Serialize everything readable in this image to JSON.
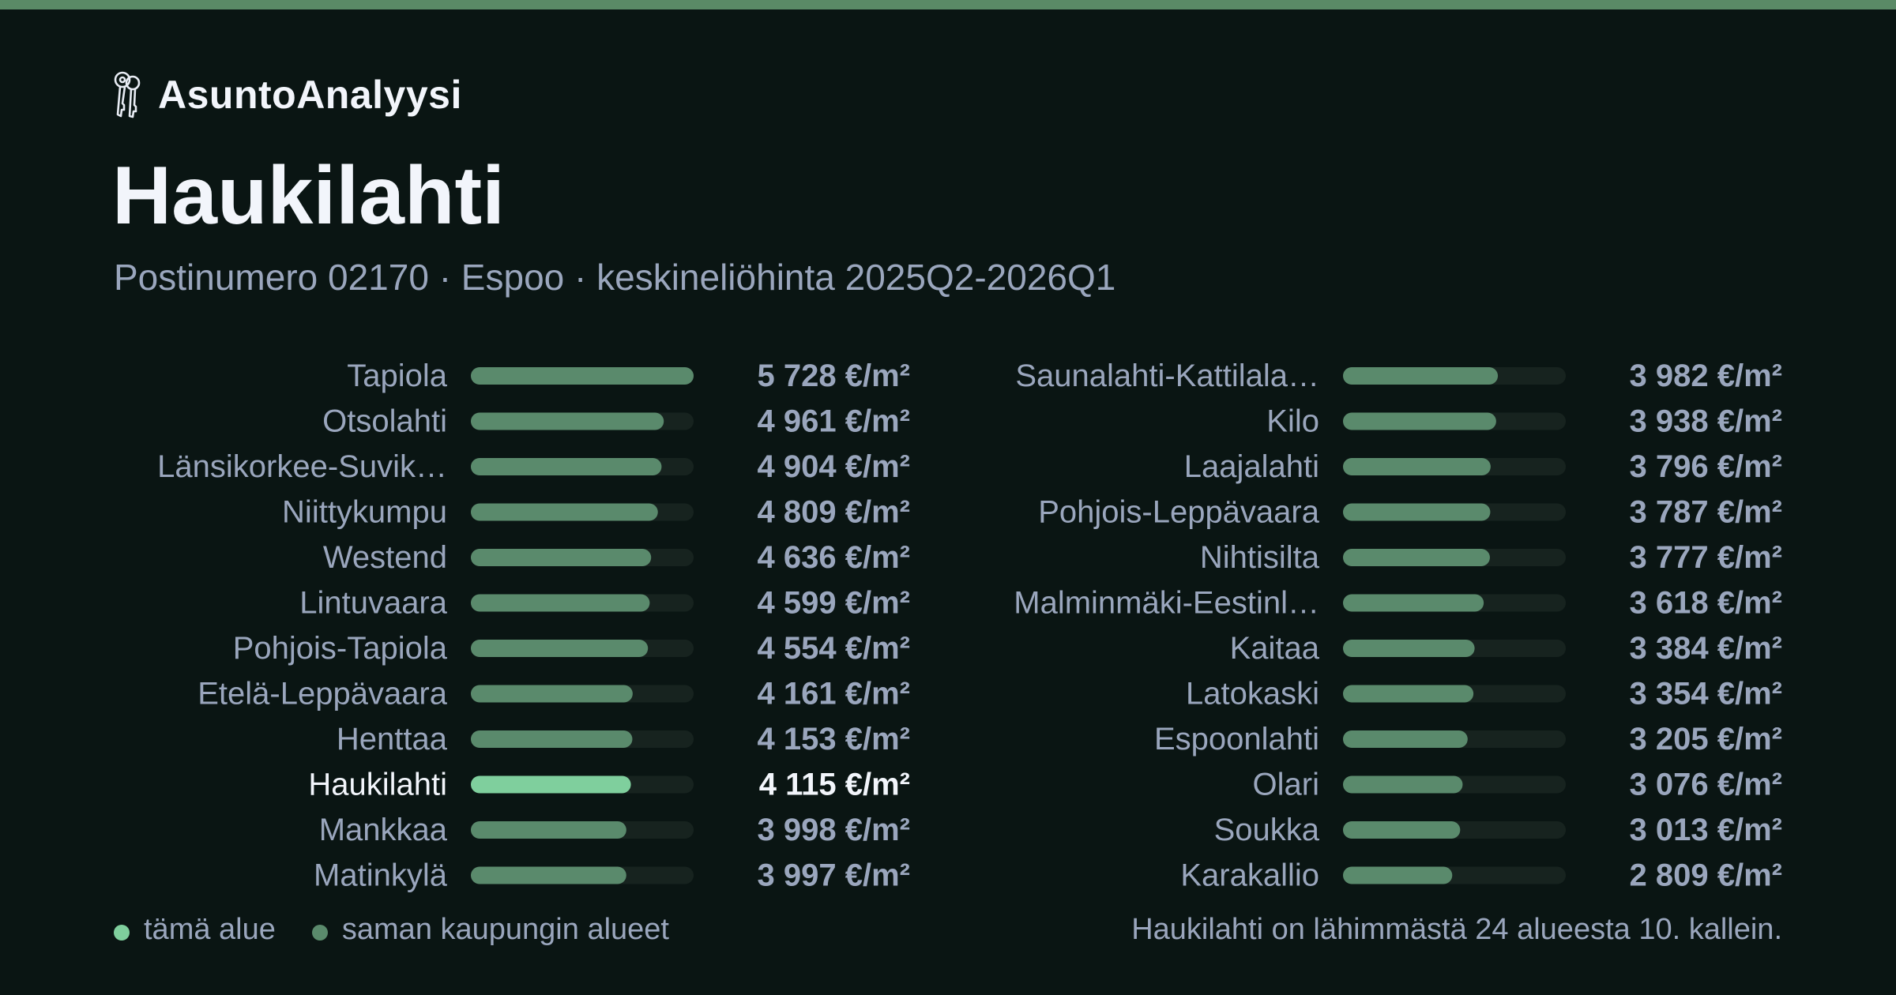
{
  "brand": {
    "name": "AsuntoAnalyysi",
    "icon": "keys-icon"
  },
  "header": {
    "title": "Haukilahti",
    "subtitle": "Postinumero 02170 · Espoo · keskineliöhinta 2025Q2-2026Q1"
  },
  "colors": {
    "background": "#0a1513",
    "accent_bar": "#5a8a66",
    "bar_default": "#5a8a6c",
    "bar_highlight": "#7fcf9d",
    "bar_track": "#17231f",
    "text_primary": "#f2f5fb",
    "text_secondary": "#9aa6bd"
  },
  "chart_data": {
    "type": "bar",
    "orientation": "horizontal",
    "unit": "€/m²",
    "highlight": "Haukilahti",
    "xlim": [
      0,
      5728
    ],
    "columns": [
      {
        "categories": [
          "Tapiola",
          "Otsolahti",
          "Länsikorkee-Suvik…",
          "Niittykumpu",
          "Westend",
          "Lintuvaara",
          "Pohjois-Tapiola",
          "Etelä-Leppävaara",
          "Henttaa",
          "Haukilahti",
          "Mankkaa",
          "Matinkylä"
        ],
        "values": [
          5728,
          4961,
          4904,
          4809,
          4636,
          4599,
          4554,
          4161,
          4153,
          4115,
          3998,
          3997
        ],
        "labels": [
          "5 728 €/m²",
          "4 961 €/m²",
          "4 904 €/m²",
          "4 809 €/m²",
          "4 636 €/m²",
          "4 599 €/m²",
          "4 554 €/m²",
          "4 161 €/m²",
          "4 153 €/m²",
          "4 115 €/m²",
          "3 998 €/m²",
          "3 997 €/m²"
        ]
      },
      {
        "categories": [
          "Saunalahti-Kattilala…",
          "Kilo",
          "Laajalahti",
          "Pohjois-Leppävaara",
          "Nihtisilta",
          "Malminmäki-Eestinl…",
          "Kaitaa",
          "Latokaski",
          "Espoonlahti",
          "Olari",
          "Soukka",
          "Karakallio"
        ],
        "values": [
          3982,
          3938,
          3796,
          3787,
          3777,
          3618,
          3384,
          3354,
          3205,
          3076,
          3013,
          2809
        ],
        "labels": [
          "3 982 €/m²",
          "3 938 €/m²",
          "3 796 €/m²",
          "3 787 €/m²",
          "3 777 €/m²",
          "3 618 €/m²",
          "3 384 €/m²",
          "3 354 €/m²",
          "3 205 €/m²",
          "3 076 €/m²",
          "3 013 €/m²",
          "2 809 €/m²"
        ]
      }
    ]
  },
  "legend": {
    "this_area": "tämä alue",
    "same_city": "saman kaupungin alueet"
  },
  "footnote": "Haukilahti on lähimmästä 24 alueesta 10. kallein."
}
